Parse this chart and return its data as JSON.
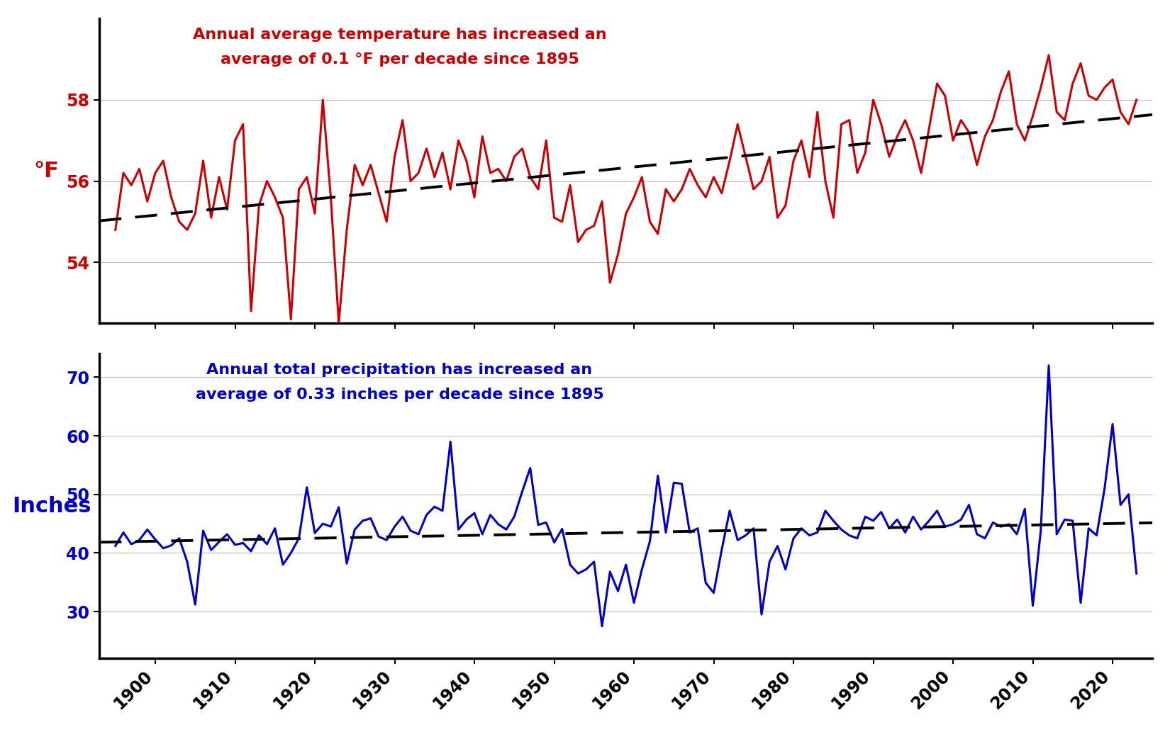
{
  "years": [
    1895,
    1896,
    1897,
    1898,
    1899,
    1900,
    1901,
    1902,
    1903,
    1904,
    1905,
    1906,
    1907,
    1908,
    1909,
    1910,
    1911,
    1912,
    1913,
    1914,
    1915,
    1916,
    1917,
    1918,
    1919,
    1920,
    1921,
    1922,
    1923,
    1924,
    1925,
    1926,
    1927,
    1928,
    1929,
    1930,
    1931,
    1932,
    1933,
    1934,
    1935,
    1936,
    1937,
    1938,
    1939,
    1940,
    1941,
    1942,
    1943,
    1944,
    1945,
    1946,
    1947,
    1948,
    1949,
    1950,
    1951,
    1952,
    1953,
    1954,
    1955,
    1956,
    1957,
    1958,
    1959,
    1960,
    1961,
    1962,
    1963,
    1964,
    1965,
    1966,
    1967,
    1968,
    1969,
    1970,
    1971,
    1972,
    1973,
    1974,
    1975,
    1976,
    1977,
    1978,
    1979,
    1980,
    1981,
    1982,
    1983,
    1984,
    1985,
    1986,
    1987,
    1988,
    1989,
    1990,
    1991,
    1992,
    1993,
    1994,
    1995,
    1996,
    1997,
    1998,
    1999,
    2000,
    2001,
    2002,
    2003,
    2004,
    2005,
    2006,
    2007,
    2008,
    2009,
    2010,
    2011,
    2012,
    2013,
    2014,
    2015,
    2016,
    2017,
    2018,
    2019,
    2020,
    2021,
    2022,
    2023
  ],
  "temp": [
    54.8,
    56.2,
    55.9,
    56.3,
    55.5,
    56.2,
    56.5,
    55.6,
    55.0,
    54.8,
    55.2,
    56.5,
    55.1,
    56.1,
    55.3,
    57.0,
    57.4,
    52.8,
    55.4,
    56.0,
    55.6,
    55.1,
    52.6,
    55.8,
    56.1,
    55.2,
    58.0,
    55.6,
    52.5,
    54.8,
    56.4,
    55.9,
    56.4,
    55.7,
    55.0,
    56.6,
    57.5,
    56.0,
    56.2,
    56.8,
    56.1,
    56.7,
    55.8,
    57.0,
    56.5,
    55.6,
    57.1,
    56.2,
    56.3,
    56.0,
    56.6,
    56.8,
    56.1,
    55.8,
    57.0,
    55.1,
    55.0,
    55.9,
    54.5,
    54.8,
    54.9,
    55.5,
    53.5,
    54.2,
    55.2,
    55.6,
    56.1,
    55.0,
    54.7,
    55.8,
    55.5,
    55.8,
    56.3,
    55.9,
    55.6,
    56.1,
    55.7,
    56.5,
    57.4,
    56.6,
    55.8,
    56.0,
    56.6,
    55.1,
    55.4,
    56.5,
    57.0,
    56.1,
    57.7,
    56.0,
    55.1,
    57.4,
    57.5,
    56.2,
    56.7,
    58.0,
    57.4,
    56.6,
    57.1,
    57.5,
    57.0,
    56.2,
    57.3,
    58.4,
    58.1,
    57.0,
    57.5,
    57.2,
    56.4,
    57.1,
    57.5,
    58.2,
    58.7,
    57.4,
    57.0,
    57.6,
    58.3,
    59.1,
    57.7,
    57.5,
    58.4,
    58.9,
    58.1,
    58.0,
    58.3,
    58.5,
    57.7,
    57.4,
    58.0
  ],
  "precip": [
    41.2,
    43.5,
    41.5,
    42.2,
    44.0,
    42.3,
    40.8,
    41.3,
    42.5,
    38.5,
    31.2,
    43.8,
    40.5,
    41.9,
    43.2,
    41.4,
    41.7,
    40.3,
    43.0,
    41.5,
    44.2,
    38.0,
    40.0,
    42.5,
    51.2,
    43.4,
    45.0,
    44.5,
    47.8,
    38.2,
    44.0,
    45.5,
    45.9,
    42.8,
    42.2,
    44.5,
    46.2,
    43.8,
    43.2,
    46.5,
    47.9,
    47.2,
    59.0,
    44.0,
    45.7,
    46.8,
    43.2,
    46.5,
    44.9,
    44.0,
    46.2,
    50.5,
    54.5,
    44.8,
    45.2,
    41.8,
    44.1,
    38.0,
    36.5,
    37.2,
    38.5,
    27.5,
    36.8,
    33.5,
    38.0,
    31.5,
    37.2,
    42.0,
    53.2,
    43.5,
    52.0,
    51.8,
    43.5,
    44.2,
    34.9,
    33.2,
    40.5,
    47.2,
    42.2,
    43.0,
    44.2,
    29.5,
    38.5,
    41.2,
    37.2,
    42.5,
    44.2,
    43.0,
    43.5,
    47.2,
    45.5,
    44.0,
    43.0,
    42.5,
    46.2,
    45.5,
    47.0,
    44.2,
    45.7,
    43.5,
    46.2,
    44.0,
    45.5,
    47.2,
    44.5,
    44.9,
    45.7,
    48.2,
    43.2,
    42.5,
    45.2,
    44.5,
    44.9,
    43.2,
    47.5,
    31.0,
    43.8,
    72.0,
    43.2,
    45.7,
    45.5,
    31.5,
    44.2,
    43.0,
    51.0,
    62.0,
    48.2,
    50.0,
    36.5
  ],
  "temp_color": "#CC0000",
  "precip_color": "#0000CC",
  "trend_color": "#000000",
  "bg_color": "#FFFFFF",
  "grid_color": "#BBBBBB",
  "temp_ylabel": "°F",
  "precip_ylabel": "Inches",
  "temp_annotation": "Annual average temperature has increased an\naverage of 0.1 °F per decade since 1895",
  "precip_annotation": "Annual total precipitation has increased an\naverage of 0.33 inches per decade since 1895",
  "temp_ylim": [
    52.5,
    60.0
  ],
  "temp_yticks": [
    54,
    56,
    58
  ],
  "precip_ylim": [
    22.0,
    74.0
  ],
  "precip_yticks": [
    30,
    40,
    50,
    60,
    70
  ],
  "xlim": [
    1893,
    2025
  ],
  "xticks": [
    1900,
    1910,
    1920,
    1930,
    1940,
    1950,
    1960,
    1970,
    1980,
    1990,
    2000,
    2010,
    2020
  ],
  "annotation_fontsize": 16,
  "tick_fontsize": 17,
  "ylabel_fontsize": 22,
  "line_width": 2.2,
  "trend_lw": 2.8,
  "trend_dash": [
    8,
    5
  ]
}
